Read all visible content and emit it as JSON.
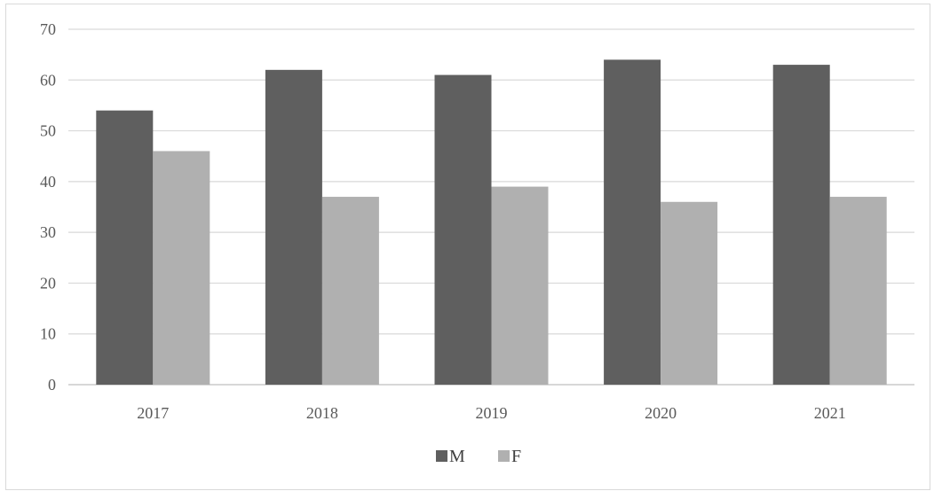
{
  "chart_data": {
    "type": "bar",
    "title": "",
    "xlabel": "",
    "ylabel": "",
    "categories": [
      "2017",
      "2018",
      "2019",
      "2020",
      "2021"
    ],
    "series": [
      {
        "name": "M",
        "values": [
          54,
          62,
          61,
          64,
          63
        ],
        "color": "#5f5f5f"
      },
      {
        "name": "F",
        "values": [
          46,
          37,
          39,
          36,
          37
        ],
        "color": "#b0b0b0"
      }
    ],
    "ylim": [
      0,
      70
    ],
    "yticks": [
      "0",
      "10",
      "20",
      "30",
      "40",
      "50",
      "60",
      "70"
    ],
    "grid": true,
    "legend_position": "bottom-center",
    "gridline_color": "#d9d9d9",
    "axis_color": "#bfbfbf"
  }
}
